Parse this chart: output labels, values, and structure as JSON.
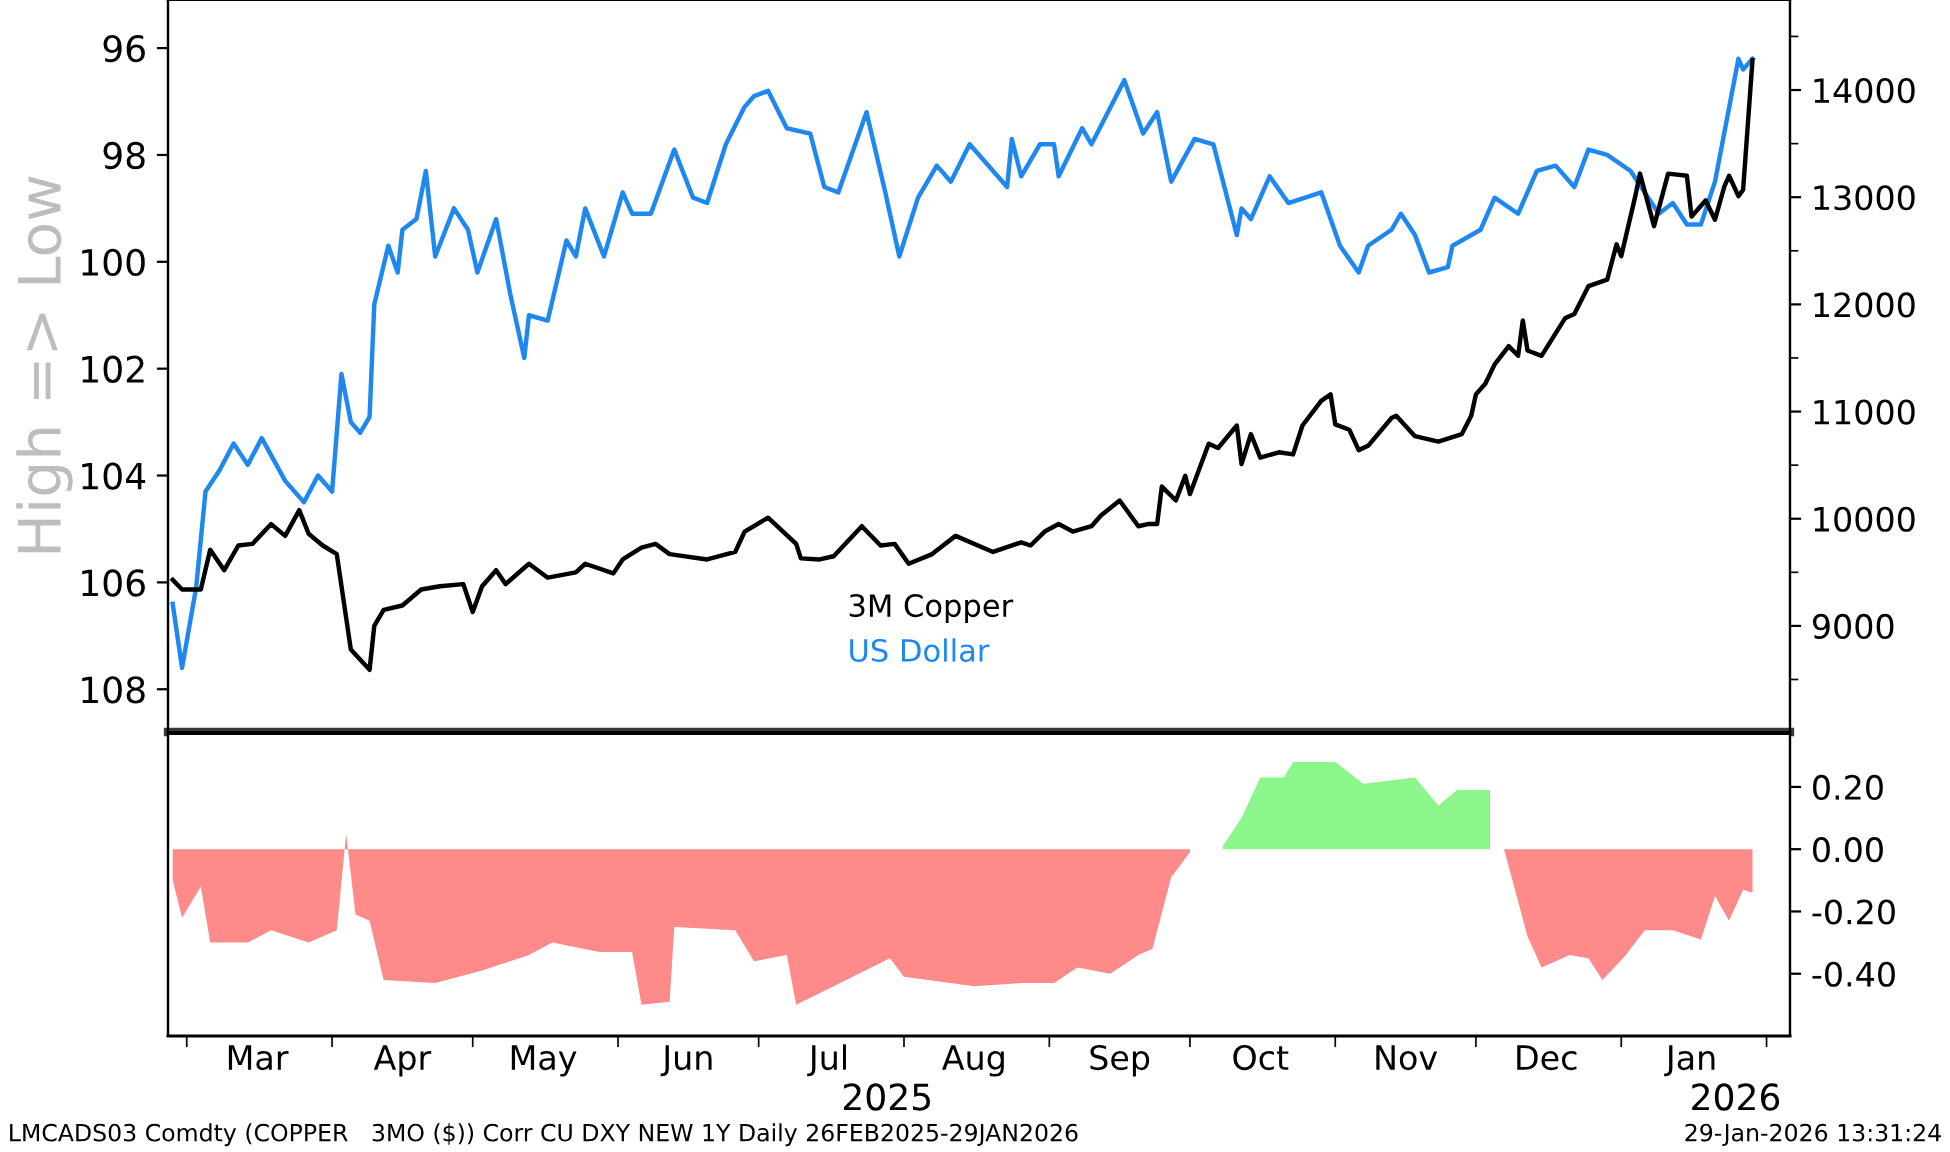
{
  "chart_data": [
    {
      "type": "line",
      "ylabel": "High => Low",
      "xlim": [
        "2025-02-25",
        "2026-02-06"
      ],
      "ylim": [
        108.8,
        95.1
      ],
      "yticks": [
        96,
        98,
        100,
        102,
        104,
        106,
        108
      ],
      "y2lim": [
        8010,
        14840
      ],
      "y2ticks": [
        {
          "value": 8500,
          "label": null
        },
        9000,
        {
          "value": 9500,
          "label": null
        },
        10000,
        {
          "value": 10500,
          "label": null
        },
        11000,
        {
          "value": 11500,
          "label": null
        },
        12000,
        {
          "value": 12500,
          "label": null
        },
        13000,
        {
          "value": 13500,
          "label": null
        },
        14000,
        {
          "value": 14500,
          "label": null
        }
      ],
      "tick_labels": "y",
      "legend": "bottom",
      "series": [
        {
          "name": "3M Copper",
          "color": "#000000",
          "axis": "y2",
          "x": [
            "2025-02-26",
            "2025-02-28",
            "2025-03-04",
            "2025-03-06",
            "2025-03-09",
            "2025-03-12",
            "2025-03-15",
            "2025-03-19",
            "2025-03-22",
            "2025-03-25",
            "2025-03-27",
            "2025-03-30",
            "2025-04-02",
            "2025-04-05",
            "2025-04-09",
            "2025-04-10",
            "2025-04-12",
            "2025-04-16",
            "2025-04-20",
            "2025-04-24",
            "2025-04-29",
            "2025-05-01",
            "2025-05-03",
            "2025-05-06",
            "2025-05-08",
            "2025-05-13",
            "2025-05-17",
            "2025-05-23",
            "2025-05-25",
            "2025-05-31",
            "2025-06-02",
            "2025-06-06",
            "2025-06-09",
            "2025-06-12",
            "2025-06-20",
            "2025-06-26",
            "2025-06-28",
            "2025-07-03",
            "2025-07-09",
            "2025-07-10",
            "2025-07-14",
            "2025-07-17",
            "2025-07-23",
            "2025-07-27",
            "2025-07-30",
            "2025-08-02",
            "2025-08-07",
            "2025-08-12",
            "2025-08-20",
            "2025-08-26",
            "2025-08-28",
            "2025-08-31",
            "2025-09-03",
            "2025-09-06",
            "2025-09-10",
            "2025-09-12",
            "2025-09-16",
            "2025-09-20",
            "2025-09-22",
            "2025-09-24",
            "2025-09-25",
            "2025-09-28",
            "2025-09-30",
            "2025-10-01",
            "2025-10-05",
            "2025-10-07",
            "2025-10-11",
            "2025-10-12",
            "2025-10-14",
            "2025-10-16",
            "2025-10-20",
            "2025-10-23",
            "2025-10-25",
            "2025-10-29",
            "2025-10-31",
            "2025-11-01",
            "2025-11-04",
            "2025-11-06",
            "2025-11-08",
            "2025-11-13",
            "2025-11-14",
            "2025-11-18",
            "2025-11-23",
            "2025-11-28",
            "2025-11-30",
            "2025-12-01",
            "2025-12-03",
            "2025-12-05",
            "2025-12-08",
            "2025-12-10",
            "2025-12-11",
            "2025-12-12",
            "2025-12-15",
            "2025-12-20",
            "2025-12-22",
            "2025-12-25",
            "2025-12-29",
            "2025-12-31",
            "2026-01-01",
            "2026-01-04",
            "2026-01-05",
            "2026-01-08",
            "2026-01-11",
            "2026-01-15",
            "2026-01-16",
            "2026-01-19",
            "2026-01-21",
            "2026-01-23",
            "2026-01-24",
            "2026-01-26",
            "2026-01-27",
            "2026-01-29"
          ],
          "values": [
            9430,
            9340,
            9340,
            9710,
            9520,
            9750,
            9765,
            9950,
            9840,
            10080,
            9860,
            9750,
            9670,
            8780,
            8590,
            9000,
            9150,
            9190,
            9340,
            9370,
            9390,
            9130,
            9370,
            9520,
            9390,
            9580,
            9450,
            9500,
            9580,
            9490,
            9620,
            9730,
            9765,
            9670,
            9620,
            9690,
            9880,
            10010,
            9765,
            9630,
            9620,
            9650,
            9930,
            9750,
            9765,
            9580,
            9670,
            9840,
            9690,
            9780,
            9750,
            9880,
            9950,
            9880,
            9930,
            10030,
            10170,
            9930,
            9950,
            9950,
            10300,
            10170,
            10400,
            10230,
            10700,
            10660,
            10870,
            10510,
            10790,
            10570,
            10620,
            10600,
            10870,
            11100,
            11160,
            10880,
            10830,
            10640,
            10680,
            10940,
            10960,
            10770,
            10720,
            10790,
            10960,
            11160,
            11260,
            11440,
            11610,
            11520,
            11850,
            11570,
            11520,
            11870,
            11910,
            12170,
            12230,
            12560,
            12450,
            13010,
            13220,
            12730,
            13220,
            13200,
            12820,
            12970,
            12790,
            13100,
            13200,
            13010,
            13070,
            14280
          ]
        },
        {
          "name": "US Dollar",
          "color": "#1e88f0",
          "axis": "y",
          "x": [
            "2025-02-26",
            "2025-02-28",
            "2025-03-03",
            "2025-03-05",
            "2025-03-08",
            "2025-03-11",
            "2025-03-14",
            "2025-03-17",
            "2025-03-22",
            "2025-03-26",
            "2025-03-29",
            "2025-04-01",
            "2025-04-03",
            "2025-04-05",
            "2025-04-07",
            "2025-04-09",
            "2025-04-10",
            "2025-04-13",
            "2025-04-15",
            "2025-04-16",
            "2025-04-19",
            "2025-04-21",
            "2025-04-23",
            "2025-04-27",
            "2025-04-30",
            "2025-05-02",
            "2025-05-06",
            "2025-05-09",
            "2025-05-12",
            "2025-05-13",
            "2025-05-17",
            "2025-05-21",
            "2025-05-23",
            "2025-05-25",
            "2025-05-29",
            "2025-06-02",
            "2025-06-04",
            "2025-06-08",
            "2025-06-13",
            "2025-06-17",
            "2025-06-20",
            "2025-06-24",
            "2025-06-28",
            "2025-06-30",
            "2025-07-03",
            "2025-07-07",
            "2025-07-12",
            "2025-07-15",
            "2025-07-18",
            "2025-07-24",
            "2025-07-28",
            "2025-07-31",
            "2025-08-04",
            "2025-08-08",
            "2025-08-11",
            "2025-08-15",
            "2025-08-23",
            "2025-08-24",
            "2025-08-26",
            "2025-08-30",
            "2025-09-02",
            "2025-09-03",
            "2025-09-08",
            "2025-09-10",
            "2025-09-17",
            "2025-09-21",
            "2025-09-24",
            "2025-09-27",
            "2025-10-02",
            "2025-10-06",
            "2025-10-11",
            "2025-10-12",
            "2025-10-14",
            "2025-10-18",
            "2025-10-22",
            "2025-10-29",
            "2025-11-02",
            "2025-11-06",
            "2025-11-08",
            "2025-11-13",
            "2025-11-15",
            "2025-11-18",
            "2025-11-21",
            "2025-11-25",
            "2025-11-26",
            "2025-12-02",
            "2025-12-05",
            "2025-12-10",
            "2025-12-14",
            "2025-12-18",
            "2025-12-22",
            "2025-12-25",
            "2025-12-29",
            "2026-01-03",
            "2026-01-09",
            "2026-01-12",
            "2026-01-15",
            "2026-01-18",
            "2026-01-21",
            "2026-01-26",
            "2026-01-27",
            "2026-01-29"
          ],
          "values": [
            106.4,
            107.6,
            106.1,
            104.3,
            103.9,
            103.4,
            103.8,
            103.3,
            104.1,
            104.5,
            104.0,
            104.3,
            102.1,
            103.0,
            103.2,
            102.9,
            100.8,
            99.7,
            100.2,
            99.4,
            99.2,
            98.3,
            99.9,
            99.0,
            99.4,
            100.2,
            99.2,
            100.6,
            101.8,
            101.0,
            101.1,
            99.6,
            99.9,
            99.0,
            99.9,
            98.7,
            99.1,
            99.1,
            97.9,
            98.8,
            98.9,
            97.8,
            97.1,
            96.9,
            96.8,
            97.5,
            97.6,
            98.6,
            98.7,
            97.2,
            98.7,
            99.9,
            98.8,
            98.2,
            98.5,
            97.8,
            98.6,
            97.7,
            98.4,
            97.8,
            97.8,
            98.4,
            97.5,
            97.8,
            96.6,
            97.6,
            97.2,
            98.5,
            97.7,
            97.8,
            99.5,
            99.0,
            99.2,
            98.4,
            98.9,
            98.7,
            99.7,
            100.2,
            99.7,
            99.4,
            99.1,
            99.5,
            100.2,
            100.1,
            99.7,
            99.4,
            98.8,
            99.1,
            98.3,
            98.2,
            98.6,
            97.9,
            98.0,
            98.3,
            99.1,
            98.9,
            99.3,
            99.3,
            98.5,
            96.2,
            96.4,
            96.2
          ]
        }
      ]
    },
    {
      "type": "area",
      "xlim": [
        "2025-02-25",
        "2026-02-06"
      ],
      "xticks": [
        {
          "value": "2025-03-01",
          "label": null
        },
        {
          "value": "2025-03-16",
          "label": "Mar"
        },
        {
          "value": "2025-04-01",
          "label": null
        },
        {
          "value": "2025-04-16",
          "label": "Apr"
        },
        {
          "value": "2025-05-01",
          "label": null
        },
        {
          "value": "2025-05-16",
          "label": "May"
        },
        {
          "value": "2025-06-01",
          "label": null
        },
        {
          "value": "2025-06-16",
          "label": "Jun"
        },
        {
          "value": "2025-07-01",
          "label": null
        },
        {
          "value": "2025-07-16",
          "label": "Jul"
        },
        {
          "value": "2025-08-01",
          "label": null
        },
        {
          "value": "2025-08-16",
          "label": "Aug"
        },
        {
          "value": "2025-09-01",
          "label": null
        },
        {
          "value": "2025-09-16",
          "label": "Sep"
        },
        {
          "value": "2025-10-01",
          "label": null
        },
        {
          "value": "2025-10-16",
          "label": "Oct"
        },
        {
          "value": "2025-11-01",
          "label": null
        },
        {
          "value": "2025-11-16",
          "label": "Nov"
        },
        {
          "value": "2025-12-01",
          "label": null
        },
        {
          "value": "2025-12-16",
          "label": "Dec"
        },
        {
          "value": "2026-01-01",
          "label": null
        },
        {
          "value": "2026-01-16",
          "label": "Jan"
        },
        {
          "value": "2026-02-01",
          "label": null
        }
      ],
      "y2lim": [
        -0.6,
        0.37
      ],
      "y2ticks": [
        {
          "value": 0.2,
          "label": "0.20"
        },
        {
          "value": 0.0,
          "label": "0.00"
        },
        {
          "value": -0.2,
          "label": "-0.20"
        },
        {
          "value": -0.4,
          "label": "-0.40"
        }
      ],
      "annotations": [
        "2025",
        "2026",
        "LMCADS03 Comdty (COPPER   3MO ($)) Corr CU DXY NEW 1Y Daily 26FEB2025-29JAN2026",
        "29-Jan-2026 13:31:24"
      ],
      "series": [
        {
          "color": "#ff8a8a",
          "axis": "y2",
          "x": [
            "2025-02-26",
            "2025-02-28",
            "2025-03-04",
            "2025-03-06",
            "2025-03-14",
            "2025-03-19",
            "2025-03-27",
            "2025-04-02",
            "2025-04-04",
            "2025-04-06",
            "2025-04-09",
            "2025-04-12",
            "2025-04-23",
            "2025-05-03",
            "2025-05-13",
            "2025-05-18",
            "2025-05-28",
            "2025-06-04",
            "2025-06-06",
            "2025-06-12",
            "2025-06-13",
            "2025-06-26",
            "2025-06-30",
            "2025-07-07",
            "2025-07-09",
            "2025-07-17",
            "2025-07-29",
            "2025-08-01",
            "2025-08-16",
            "2025-08-26",
            "2025-09-02",
            "2025-09-07",
            "2025-09-14",
            "2025-09-20",
            "2025-09-23",
            "2025-09-27",
            "2025-10-01",
            "2025-11-01",
            "2025-12-07",
            "2025-12-12",
            "2025-12-15",
            "2025-12-21",
            "2025-12-25",
            "2025-12-28",
            "2026-01-02",
            "2026-01-06",
            "2026-01-12",
            "2026-01-18",
            "2026-01-21",
            "2026-01-24",
            "2026-01-27",
            "2026-01-29"
          ],
          "values": [
            -0.1,
            -0.22,
            -0.12,
            -0.3,
            -0.3,
            -0.26,
            -0.3,
            -0.26,
            0.05,
            -0.21,
            -0.23,
            -0.42,
            -0.43,
            -0.39,
            -0.34,
            -0.3,
            -0.33,
            -0.33,
            -0.5,
            -0.49,
            -0.25,
            -0.26,
            -0.36,
            -0.34,
            -0.5,
            -0.44,
            -0.35,
            -0.41,
            -0.44,
            -0.43,
            -0.43,
            -0.38,
            -0.4,
            -0.34,
            -0.32,
            -0.09,
            -0.01,
            null,
            0.0,
            -0.28,
            -0.38,
            -0.34,
            -0.35,
            -0.42,
            -0.34,
            -0.26,
            -0.26,
            -0.29,
            -0.15,
            -0.23,
            -0.13,
            -0.14
          ]
        },
        {
          "color": "#8cf58c",
          "axis": "y2",
          "x": [
            "2025-10-08",
            "2025-10-12",
            "2025-10-16",
            "2025-10-21",
            "2025-10-23",
            "2025-11-01",
            "2025-11-07",
            "2025-11-18",
            "2025-11-23",
            "2025-11-27",
            "2025-12-04"
          ],
          "values": [
            0.01,
            0.1,
            0.23,
            0.23,
            0.28,
            0.28,
            0.21,
            0.23,
            0.14,
            0.19,
            0.19
          ]
        }
      ]
    }
  ]
}
